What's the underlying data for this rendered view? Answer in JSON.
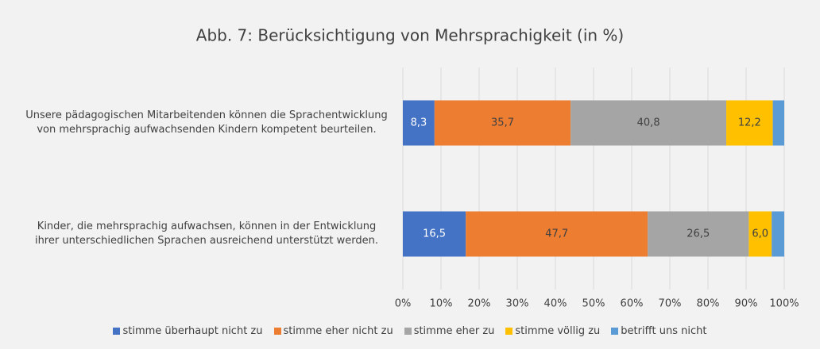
{
  "chart_data": {
    "type": "stacked_barh",
    "title": "Abb. 7: Berücksichtigung von Mehrsprachigkeit (in %)",
    "categories": [
      "Unsere pädagogischen Mitarbeitenden können die Sprachentwicklung von mehrsprachig aufwachsenden Kindern kompetent beurteilen.",
      "Kinder, die mehrsprachig aufwachsen, können in der Entwicklung ihrer unterschiedlichen Sprachen ausreichend unterstützt werden."
    ],
    "series": [
      {
        "name": "stimme überhaupt nicht zu",
        "color": "#4472c4",
        "values": [
          8.3,
          16.5
        ],
        "value_labels": [
          "8,3",
          "16,5"
        ]
      },
      {
        "name": "stimme eher nicht zu",
        "color": "#ed7d31",
        "values": [
          35.7,
          47.7
        ],
        "value_labels": [
          "35,7",
          "47,7"
        ]
      },
      {
        "name": "stimme eher zu",
        "color": "#a5a5a5",
        "values": [
          40.8,
          26.5
        ],
        "value_labels": [
          "40,8",
          "26,5"
        ]
      },
      {
        "name": "stimme völlig zu",
        "color": "#ffc000",
        "values": [
          12.2,
          6.0
        ],
        "value_labels": [
          "12,2",
          "6,0"
        ]
      },
      {
        "name": "betrifft uns nicht",
        "color": "#5b9bd5",
        "values": [
          3.0,
          3.3
        ]
      }
    ],
    "xlim": [
      0,
      100
    ],
    "xticks": [
      {
        "value": 0,
        "label": "0%"
      },
      {
        "value": 10,
        "label": "10%"
      },
      {
        "value": 20,
        "label": "20%"
      },
      {
        "value": 30,
        "label": "30%"
      },
      {
        "value": 40,
        "label": "40%"
      },
      {
        "value": 50,
        "label": "50%"
      },
      {
        "value": 60,
        "label": "60%"
      },
      {
        "value": 70,
        "label": "70%"
      },
      {
        "value": 80,
        "label": "80%"
      },
      {
        "value": 90,
        "label": "90%"
      },
      {
        "value": 100,
        "label": "100%"
      }
    ],
    "grid": true,
    "legend": "bottom"
  }
}
